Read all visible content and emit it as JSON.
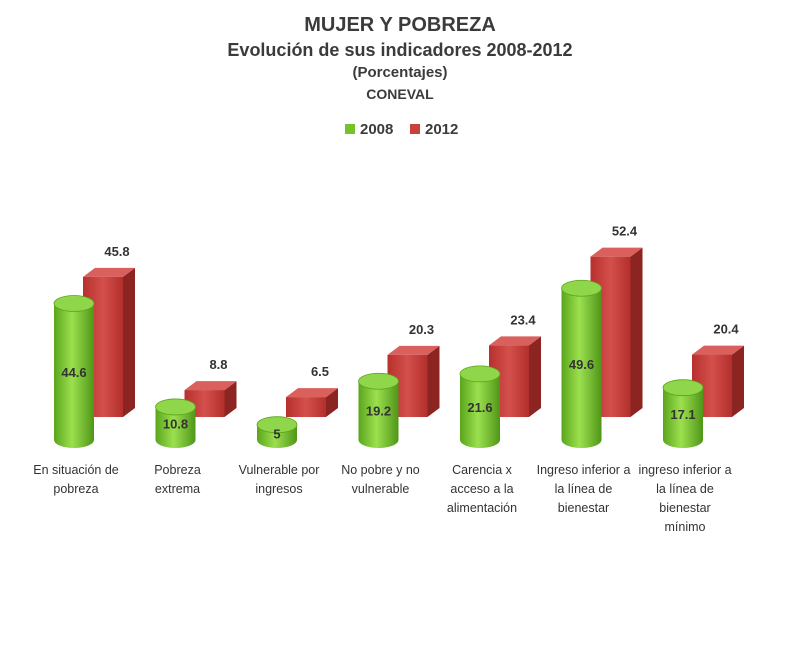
{
  "header": {
    "title": "MUJER Y POBREZA",
    "subtitle": "Evolución de sus indicadores 2008-2012",
    "units": "(Porcentajes)",
    "source": "CONEVAL"
  },
  "colors": {
    "s2008": "#77c12f",
    "s2012": "#c9403d"
  },
  "chart_data": {
    "type": "bar",
    "title": "MUJER Y POBREZA",
    "subtitle": "Evolución de sus indicadores 2008-2012",
    "grid": false,
    "legend": "top-center",
    "categories": [
      "En situación de pobreza",
      "Pobreza extrema",
      "Vulnerable por ingresos",
      "No pobre y no vulnerable",
      "Carencia x acceso a la alimentación",
      "Ingreso inferior a la línea de bienestar",
      "ingreso inferior a la línea de bienestar mínimo"
    ],
    "series": [
      {
        "name": "2008",
        "values": [
          44.6,
          10.8,
          5,
          19.2,
          21.6,
          49.6,
          17.1
        ]
      },
      {
        "name": "2012",
        "values": [
          45.8,
          8.8,
          6.5,
          20.3,
          23.4,
          52.4,
          20.4
        ]
      }
    ]
  }
}
